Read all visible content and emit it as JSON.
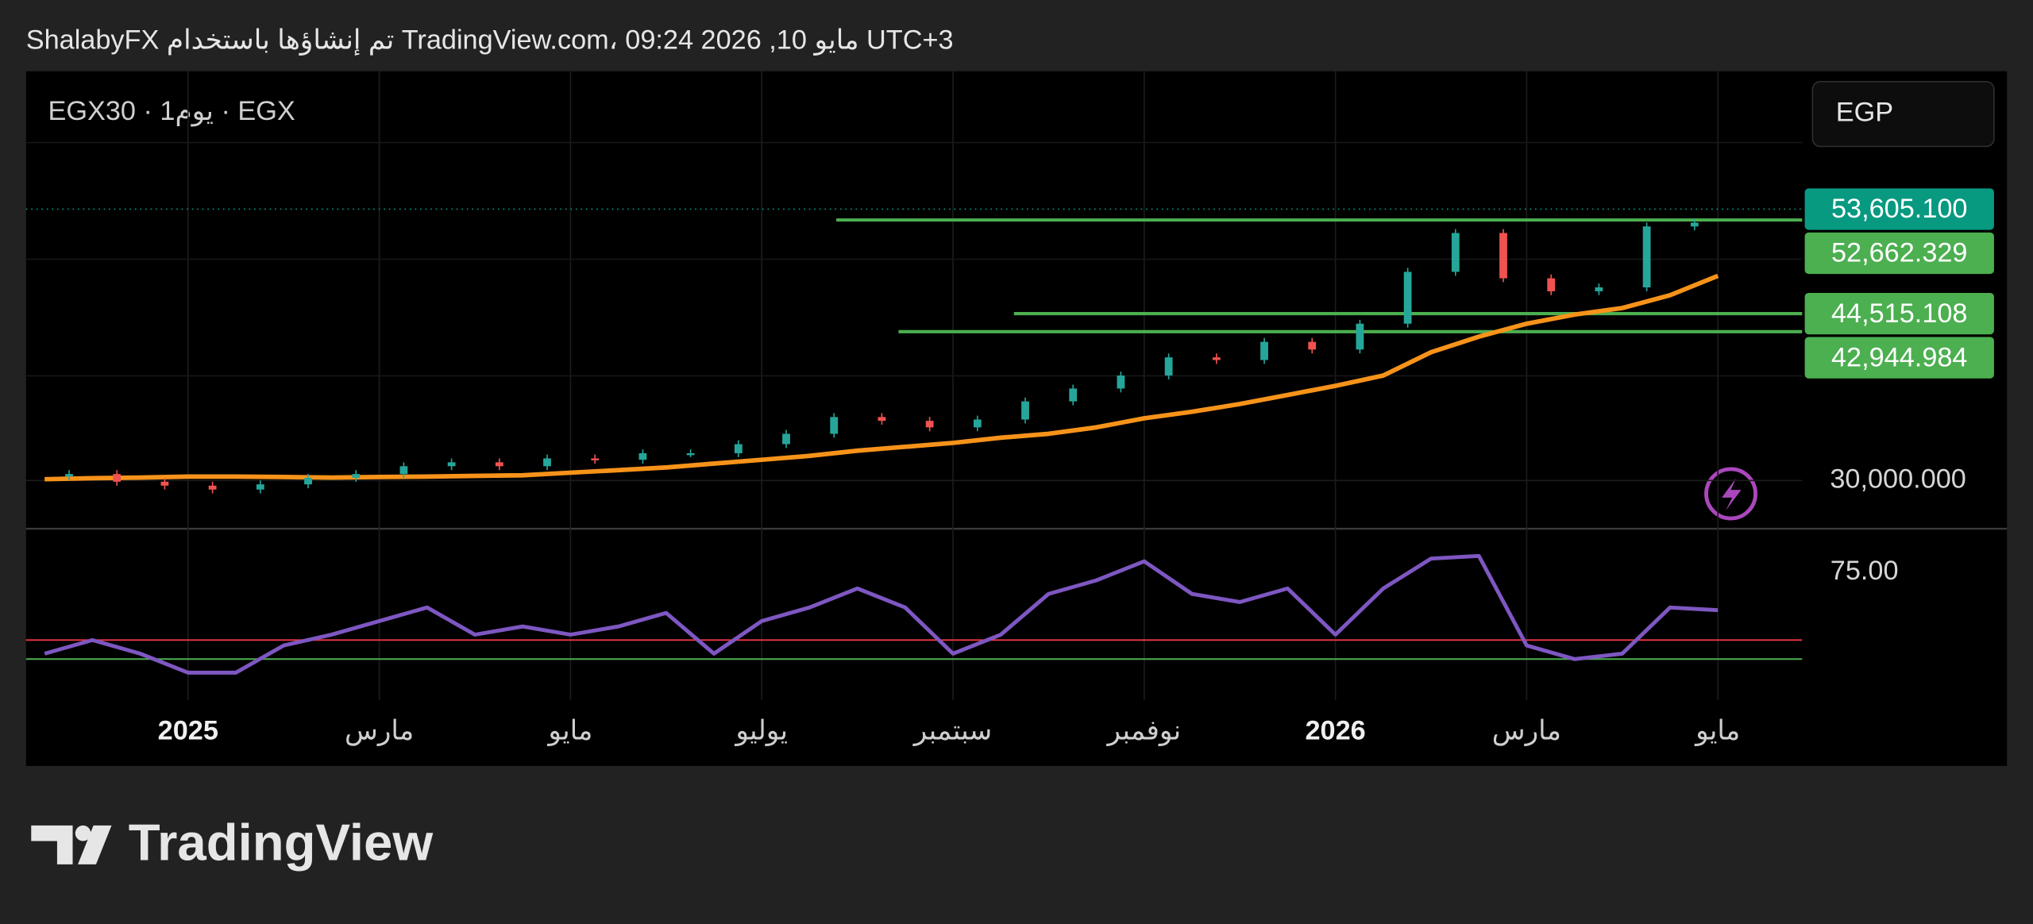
{
  "header": "ShalabyFX تم إنشاؤها باستخدام TradingView.com، 09:24 2026 ,10 مايو UTC+3",
  "brand": "TradingView",
  "chart_data": {
    "type": "candlestick",
    "symbol": "EGX30 · 1يوم · EGX",
    "currency": "EGP",
    "categories": [
      null,
      null,
      null,
      "2025",
      null,
      null,
      null,
      "مارس",
      null,
      null,
      null,
      "مايو",
      null,
      null,
      null,
      "يوليو",
      null,
      null,
      null,
      "سبتمبر",
      null,
      null,
      null,
      "نوفمبر",
      null,
      null,
      null,
      "2026",
      null,
      null,
      null,
      "مارس",
      null,
      null,
      null,
      "مايو"
    ],
    "series": [
      {
        "color": "#26a69a",
        "down_color": "#ef5350",
        "values": [
          30340,
          30560,
          29890,
          29550,
          29210,
          29660,
          30230,
          30560,
          31240,
          31580,
          31240,
          31920,
          31800,
          32370,
          32370,
          33160,
          34060,
          35520,
          35190,
          34620,
          35300,
          36880,
          38000,
          39130,
          40710,
          40480,
          42060,
          41390,
          43640,
          48150,
          51530,
          47590,
          46460,
          46800,
          52100,
          52430
        ]
      },
      {
        "color": "#f7931a",
        "values": [
          30110,
          30200,
          30250,
          30340,
          30340,
          30300,
          30250,
          30300,
          30340,
          30400,
          30450,
          30680,
          30900,
          31130,
          31470,
          31800,
          32140,
          32590,
          32930,
          33270,
          33720,
          34060,
          34620,
          35410,
          35980,
          36650,
          37440,
          38230,
          39130,
          41160,
          42510,
          43640,
          44430,
          45000,
          46120,
          47800
        ]
      }
    ],
    "ylim": [
      25800,
      65600
    ],
    "yticks": [
      {
        "value": 30000,
        "label": "30,000.000"
      }
    ],
    "grid": true,
    "last_price": {
      "value": 53605.1,
      "label": "53,605.100",
      "color": "#089981"
    },
    "levels": {
      "color": "#4caf50",
      "values": [
        52662.329,
        44515.108,
        42944.984
      ],
      "value_labels": [
        "52,662.329",
        "44,515.108",
        "42,944.984"
      ]
    },
    "rsi": {
      "color": "#7e57c2",
      "values": [
        45,
        50,
        45,
        38,
        38,
        48,
        52,
        57,
        62,
        52,
        55,
        52,
        55,
        60,
        45,
        57,
        62,
        69,
        62,
        45,
        52,
        67,
        72,
        79,
        67,
        64,
        69,
        52,
        69,
        80,
        81,
        48,
        43,
        45,
        62,
        61
      ],
      "ylim": [
        28,
        91
      ],
      "yticks": [
        {
          "value": 75,
          "label": "75.00"
        }
      ],
      "levels": [
        {
          "value": 50,
          "color": "#f23645"
        },
        {
          "value": 43,
          "color": "#4caf50"
        }
      ]
    }
  }
}
